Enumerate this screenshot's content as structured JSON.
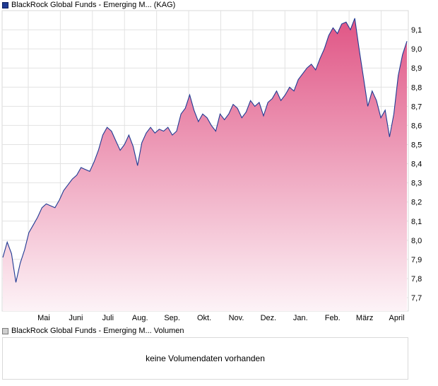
{
  "chart_data": {
    "type": "area",
    "title": "",
    "xlabel": "",
    "ylabel": "",
    "series": [
      {
        "name": "BlackRock Global Funds - Emerging M... (KAG)",
        "values": [
          7.91,
          7.99,
          7.93,
          7.78,
          7.88,
          7.95,
          8.04,
          8.08,
          8.12,
          8.17,
          8.19,
          8.18,
          8.17,
          8.21,
          8.26,
          8.29,
          8.32,
          8.34,
          8.38,
          8.37,
          8.36,
          8.41,
          8.47,
          8.55,
          8.59,
          8.57,
          8.52,
          8.47,
          8.5,
          8.55,
          8.49,
          8.39,
          8.51,
          8.56,
          8.59,
          8.56,
          8.58,
          8.57,
          8.59,
          8.55,
          8.57,
          8.66,
          8.69,
          8.76,
          8.68,
          8.62,
          8.66,
          8.64,
          8.6,
          8.57,
          8.66,
          8.63,
          8.66,
          8.71,
          8.69,
          8.64,
          8.67,
          8.73,
          8.7,
          8.72,
          8.65,
          8.72,
          8.74,
          8.78,
          8.73,
          8.76,
          8.8,
          8.78,
          8.84,
          8.87,
          8.9,
          8.92,
          8.89,
          8.95,
          9.0,
          9.07,
          9.11,
          9.08,
          9.13,
          9.14,
          9.1,
          9.16,
          9.0,
          8.85,
          8.7,
          8.78,
          8.73,
          8.64,
          8.68,
          8.54,
          8.66,
          8.86,
          8.97,
          9.04
        ]
      }
    ],
    "x_labels": [
      "Mai",
      "Juni",
      "Juli",
      "Aug.",
      "Sep.",
      "Okt.",
      "Nov.",
      "Dez.",
      "Jan.",
      "Feb.",
      "März",
      "April"
    ],
    "y_ticks": [
      7.7,
      7.8,
      7.9,
      8.0,
      8.1,
      8.2,
      8.3,
      8.4,
      8.5,
      8.6,
      8.7,
      8.8,
      8.9,
      9.0,
      9.1
    ],
    "y_tick_labels": [
      "7,7",
      "7,8",
      "7,9",
      "8,0",
      "8,1",
      "8,2",
      "8,3",
      "8,4",
      "8,5",
      "8,6",
      "8,7",
      "8,8",
      "8,9",
      "9,0",
      "9,1"
    ],
    "ylim": [
      7.63,
      9.2
    ],
    "grid": true,
    "legend": "top-left",
    "colors": {
      "line": "#1f3a93",
      "fill_top": "#e05585",
      "fill_bottom": "#fdf3f7",
      "grid": "#e2e2e2"
    }
  },
  "volume_panel": {
    "legend": "BlackRock Global Funds - Emerging M... Volumen",
    "message": "keine Volumendaten vorhanden"
  }
}
